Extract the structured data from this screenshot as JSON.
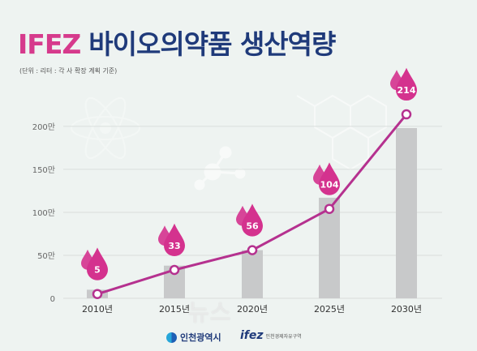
{
  "title_brand": "IFEZ",
  "title_rest": "바이오의약품 생산역량",
  "unit_note": "(단위 : 리터 : 각 사 확장 계획 기준)",
  "colors": {
    "title_brand": "#d63a8c",
    "title_rest": "#1f3a7a",
    "bar": "#c8c9ca",
    "line": "#b5318f",
    "drop": "#d4328e"
  },
  "chart_data": {
    "type": "bar",
    "combo": "bar+line",
    "categories": [
      "2010년",
      "2015년",
      "2020년",
      "2025년",
      "2030년"
    ],
    "values": [
      5,
      33,
      56,
      104,
      214
    ],
    "bar_values": [
      10,
      38,
      56,
      117,
      198
    ],
    "data_labels": [
      "5",
      "33",
      "56",
      "104",
      "214"
    ],
    "y_ticks": [
      "0",
      "50만",
      "100만",
      "150만",
      "200만"
    ],
    "y_tick_values": [
      0,
      50,
      100,
      150,
      200
    ],
    "ylim": [
      0,
      215
    ],
    "grid": true,
    "legend": "none",
    "title": "IFEZ 바이오의약품 생산역량",
    "xlabel": "",
    "ylabel": ""
  },
  "footer": {
    "incheon_logo": "인천광역시",
    "ifez_logo": "ifez",
    "ifez_sub": "인천경제자유구역"
  },
  "watermark": "뉴스",
  "icons": [
    "atom-icon",
    "molecule-icon",
    "hexagon-structure-icon",
    "water-drop-icon"
  ]
}
